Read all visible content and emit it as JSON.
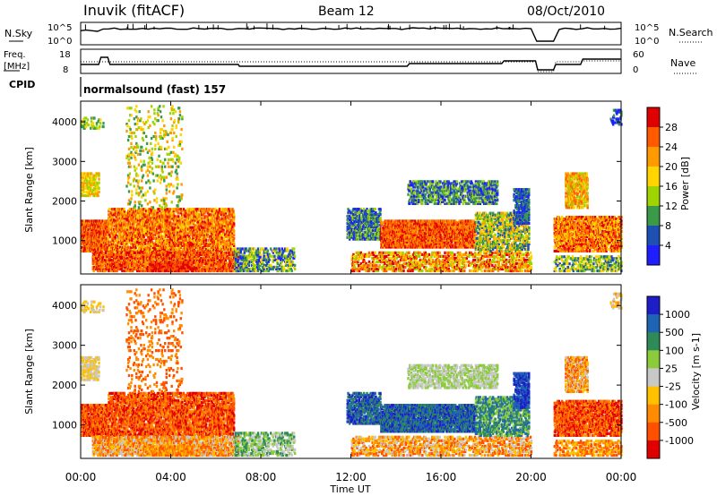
{
  "header": {
    "station": "Inuvik (fitACF)",
    "beam": "Beam 12",
    "date": "08/Oct/2010"
  },
  "top_panels": {
    "nsky_label": "N.Sky",
    "nsearch_label": "N.Search",
    "nsky_ticks": [
      "10^5",
      "10^0"
    ],
    "nsearch_ticks": [
      "10^5",
      "10^0"
    ],
    "freq_label_1": "Freq.",
    "freq_label_2": "[MHz]",
    "freq_ticks": [
      "18",
      "8"
    ],
    "nave_label": "Nave",
    "nave_ticks": [
      "60",
      "0"
    ],
    "cpid_label": "CPID",
    "cpid_value": "normalsound (fast) 157"
  },
  "chart_data": [
    {
      "type": "heatmap",
      "name": "power",
      "ylabel": "Slant Range [km]",
      "ylim": [
        180,
        4500
      ],
      "y_ticks": [
        1000,
        2000,
        3000,
        4000
      ],
      "colorbar_label": "Power [dB]",
      "colorbar_ticks": [
        "28",
        "24",
        "20",
        "16",
        "12",
        "8",
        "4"
      ],
      "colors": [
        "#e00000",
        "#ff5a00",
        "#ff9a00",
        "#ffd400",
        "#9fd400",
        "#3a9a4a",
        "#1e50b4",
        "#1e1eff"
      ]
    },
    {
      "type": "heatmap",
      "name": "velocity",
      "ylabel": "Slant Range [km]",
      "ylim": [
        180,
        4500
      ],
      "y_ticks": [
        1000,
        2000,
        3000,
        4000
      ],
      "colorbar_label": "Velocity [m s-1]",
      "colorbar_ticks": [
        "1000",
        "500",
        "100",
        "25",
        "-25",
        "-100",
        "-500",
        "-1000"
      ],
      "colors": [
        "#1e1ec8",
        "#1e64b4",
        "#2e8b57",
        "#8ccc3c",
        "#c8c8c8",
        "#ffc000",
        "#ff8c00",
        "#ff5000",
        "#e00000"
      ]
    }
  ],
  "x_axis": {
    "label": "Time UT",
    "ticks": [
      "00:00",
      "04:00",
      "08:00",
      "12:00",
      "16:00",
      "20:00",
      "00:00"
    ]
  }
}
